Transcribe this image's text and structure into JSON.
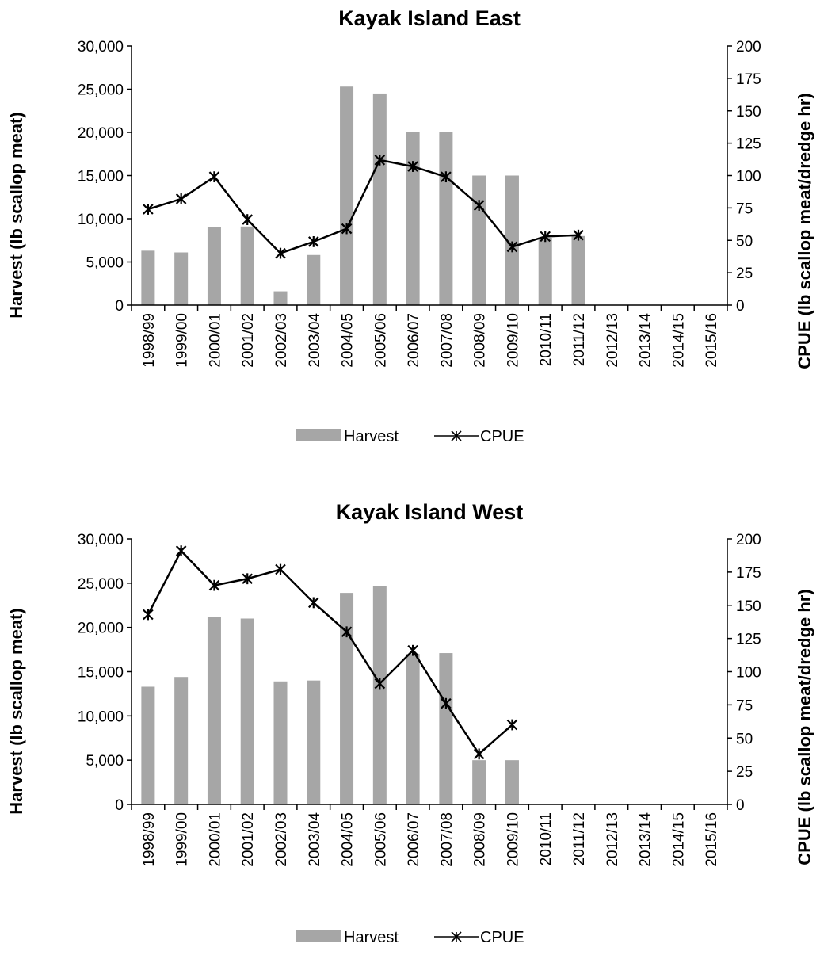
{
  "chart_data": [
    {
      "type": "bar",
      "title": "Kayak Island East",
      "categories": [
        "1998/99",
        "1999/00",
        "2000/01",
        "2001/02",
        "2002/03",
        "2003/04",
        "2004/05",
        "2005/06",
        "2006/07",
        "2007/08",
        "2008/09",
        "2009/10",
        "2010/11",
        "2011/12",
        "2012/13",
        "2013/14",
        "2014/15",
        "2015/16"
      ],
      "y_left": {
        "label": "Harvest (lb scallop meat)",
        "range": [
          0,
          30000
        ],
        "ticks": [
          "0",
          "5,000",
          "10,000",
          "15,000",
          "20,000",
          "25,000",
          "30,000"
        ]
      },
      "y_right": {
        "label": "CPUE (lb scallop meat/dredge hr)",
        "range": [
          0,
          200
        ],
        "ticks": [
          "0",
          "25",
          "50",
          "75",
          "100",
          "125",
          "150",
          "175",
          "200"
        ]
      },
      "series": [
        {
          "name": "Harvest",
          "kind": "bar",
          "axis": "left",
          "color": "#a6a6a6",
          "values": [
            6300,
            6100,
            9000,
            9100,
            1600,
            5800,
            25300,
            24500,
            20000,
            20000,
            15000,
            15000,
            7800,
            8000,
            null,
            null,
            null,
            null
          ]
        },
        {
          "name": "CPUE",
          "kind": "line",
          "axis": "right",
          "color": "#000000",
          "marker": "asterisk",
          "values": [
            74,
            82,
            99,
            66,
            40,
            49,
            59,
            112,
            107,
            99,
            77,
            45,
            53,
            54,
            null,
            null,
            null,
            null
          ]
        }
      ],
      "legend": {
        "position": "bottom-center",
        "items": [
          "Harvest",
          "CPUE"
        ]
      },
      "grid": false
    },
    {
      "type": "bar",
      "title": "Kayak Island West",
      "categories": [
        "1998/99",
        "1999/00",
        "2000/01",
        "2001/02",
        "2002/03",
        "2003/04",
        "2004/05",
        "2005/06",
        "2006/07",
        "2007/08",
        "2008/09",
        "2009/10",
        "2010/11",
        "2011/12",
        "2012/13",
        "2013/14",
        "2014/15",
        "2015/16"
      ],
      "y_left": {
        "label": "Harvest (lb scallop meat)",
        "range": [
          0,
          30000
        ],
        "ticks": [
          "0",
          "5,000",
          "10,000",
          "15,000",
          "20,000",
          "25,000",
          "30,000"
        ]
      },
      "y_right": {
        "label": "CPUE (lb scallop meat/dredge hr)",
        "range": [
          0,
          200
        ],
        "ticks": [
          "0",
          "25",
          "50",
          "75",
          "100",
          "125",
          "150",
          "175",
          "200"
        ]
      },
      "series": [
        {
          "name": "Harvest",
          "kind": "bar",
          "axis": "left",
          "color": "#a6a6a6",
          "values": [
            13300,
            14400,
            21200,
            21000,
            13900,
            14000,
            23900,
            24700,
            17000,
            17100,
            5000,
            5000,
            null,
            null,
            null,
            null,
            null,
            null
          ]
        },
        {
          "name": "CPUE",
          "kind": "line",
          "axis": "right",
          "color": "#000000",
          "marker": "asterisk",
          "values": [
            143,
            191,
            165,
            170,
            177,
            152,
            130,
            91,
            116,
            76,
            38,
            60,
            null,
            null,
            null,
            null,
            null,
            null
          ]
        }
      ],
      "legend": {
        "position": "bottom-center",
        "items": [
          "Harvest",
          "CPUE"
        ]
      },
      "grid": false
    }
  ]
}
